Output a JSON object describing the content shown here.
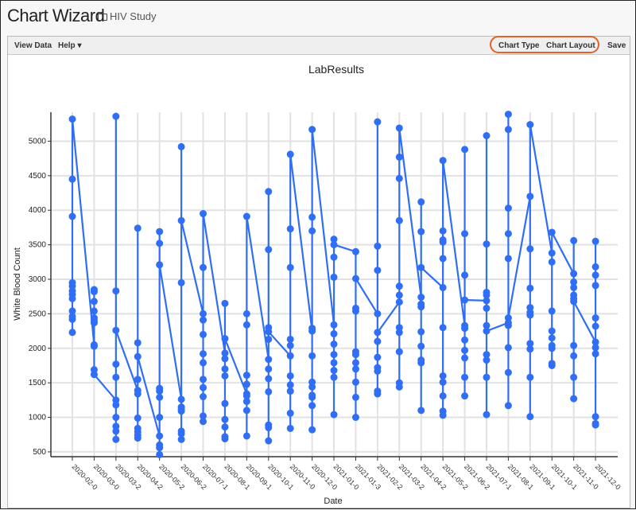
{
  "header": {
    "title": "Chart Wizard",
    "folder": "HIV Study",
    "folder_icon": "folder-icon"
  },
  "toolbar": {
    "view_data": "View Data",
    "help": "Help ▾",
    "chart_type": "Chart Type",
    "chart_layout": "Chart Layout",
    "save": "Save",
    "highlight_color": "#e0632c"
  },
  "chart_data": {
    "type": "line",
    "title": "LabResults",
    "xlabel": "Date",
    "ylabel": "White Blood Count",
    "ylim": [
      430,
      5420
    ],
    "yticks": [
      500,
      1000,
      1500,
      2000,
      2500,
      3000,
      3500,
      4000,
      4500,
      5000
    ],
    "grid": true,
    "color": "#2f6ef5",
    "categories": [
      "2020-02-0",
      "2020-03-0",
      "2020-03-2",
      "2020-04-2",
      "2020-05-2",
      "2020-06-2",
      "2020-07-1",
      "2020-08-1",
      "2020-09-1",
      "2020-10-1",
      "2020-11-0",
      "2020-12-0",
      "2021-01-0",
      "2021-01-3",
      "2021-02-2",
      "2021-03-2",
      "2021-04-2",
      "2021-05-2",
      "2021-06-2",
      "2021-07-1",
      "2021-08-1",
      "2021-09-1",
      "2021-10-1",
      "2021-11-0",
      "2021-12-0"
    ],
    "values": [
      [
        2230,
        2420,
        2460,
        2540,
        2720,
        2780,
        2830,
        2900,
        2950,
        3910,
        4450,
        5320
      ],
      [
        2050,
        2850,
        2820,
        2680,
        2540,
        2440,
        2400,
        2370,
        2030,
        1690,
        1620
      ],
      [
        1250,
        680,
        800,
        870,
        1000,
        1180,
        1580,
        1770,
        2830,
        5360,
        2260
      ],
      [
        1390,
        700,
        740,
        790,
        840,
        990,
        1340,
        1550,
        2080,
        3740,
        1880
      ],
      [
        730,
        460,
        560,
        600,
        1000,
        1290,
        1380,
        1420,
        3520,
        3690,
        3210
      ],
      [
        1260,
        680,
        760,
        800,
        1090,
        1120,
        1150,
        2950,
        4920,
        3850
      ],
      [
        2500,
        940,
        1020,
        1300,
        1430,
        1550,
        1790,
        1920,
        2200,
        2410,
        3170,
        3950
      ],
      [
        1930,
        1850,
        1700,
        1600,
        1200,
        970,
        860,
        720,
        690,
        2650,
        2140
      ],
      [
        1340,
        730,
        1100,
        1230,
        1310,
        1480,
        1610,
        2340,
        2500,
        3910
      ],
      [
        1840,
        660,
        850,
        890,
        1370,
        1560,
        1700,
        2130,
        2300,
        4270,
        3430,
        2240
      ],
      [
        1890,
        840,
        1060,
        1380,
        1470,
        1600,
        2040,
        2130,
        3170,
        3730,
        4810
      ],
      [
        2250,
        820,
        1170,
        1290,
        1320,
        1440,
        1510,
        1890,
        2290,
        3700,
        3900,
        5170
      ],
      [
        2340,
        1040,
        1580,
        1680,
        1790,
        1910,
        2060,
        2210,
        3030,
        3320,
        3580,
        3500
      ],
      [
        3400,
        1000,
        1290,
        1510,
        1700,
        1790,
        1910,
        1950,
        2540,
        2580,
        3010
      ],
      [
        2500,
        5280,
        3480,
        3130,
        1340,
        1380,
        1670,
        1720,
        1870,
        2100,
        2230
      ],
      [
        2670,
        1440,
        1500,
        1950,
        2230,
        2300,
        2770,
        2900,
        3850,
        4460,
        4770,
        5190
      ],
      [
        2740,
        1100,
        1790,
        1830,
        2030,
        2240,
        2600,
        2640,
        4120,
        3690,
        3170
      ],
      [
        2880,
        1030,
        1090,
        1310,
        1510,
        1600,
        2300,
        3300,
        3540,
        3570,
        3700,
        4720
      ],
      [
        2330,
        1310,
        1580,
        1860,
        1970,
        2120,
        2290,
        3060,
        3660,
        4880,
        2700
      ],
      [
        2690,
        5080,
        3510,
        2810,
        2770,
        2580,
        2330,
        1910,
        1830,
        1580,
        1040,
        2250
      ],
      [
        2370,
        5390,
        5170,
        4030,
        3660,
        3300,
        2330,
        2010,
        1650,
        1170,
        2440
      ],
      [
        4200,
        1010,
        1580,
        1990,
        2070,
        2480,
        2520,
        2590,
        2870,
        3440,
        5240
      ],
      [
        3380,
        3250,
        2540,
        2250,
        2150,
        2040,
        2000,
        1780,
        1750,
        3680
      ],
      [
        3080,
        3560,
        2960,
        2880,
        2770,
        2720,
        1270,
        1580,
        1890,
        2040,
        2680
      ],
      [
        2090,
        3550,
        3180,
        3060,
        2910,
        2440,
        2320,
        2010,
        1920,
        1010,
        910,
        890
      ]
    ]
  }
}
